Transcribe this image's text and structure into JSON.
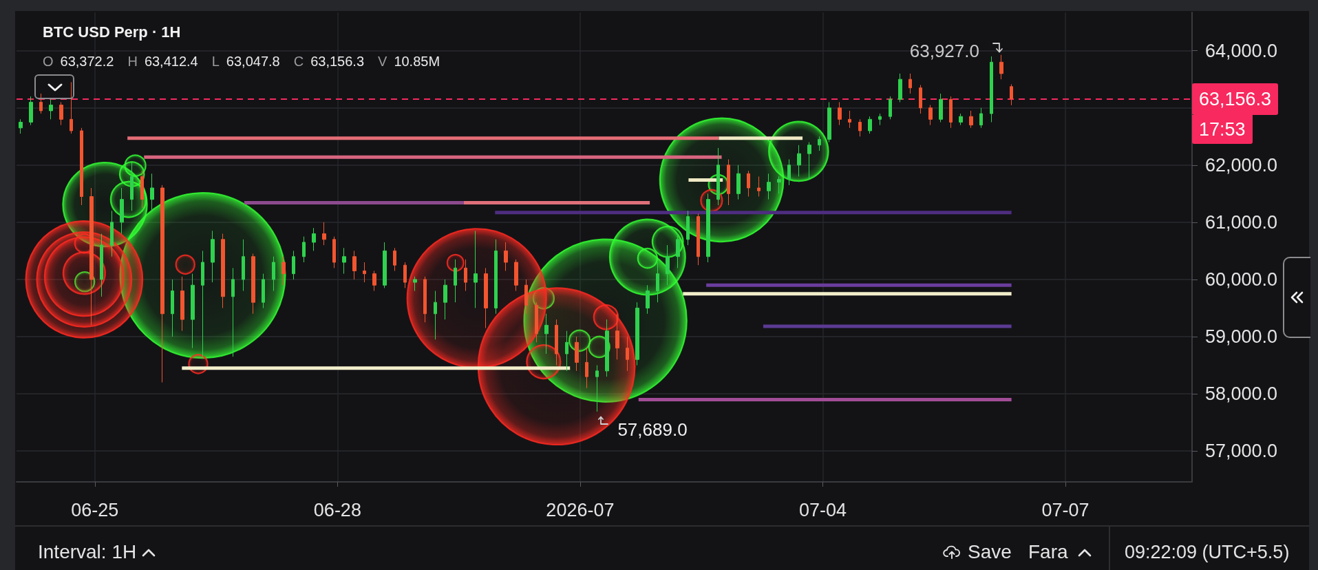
{
  "chart_data": {
    "type": "candlestick",
    "title": "BTC USD Perp · 1H",
    "subtitle": "O 63,372.2 H 63,412.4 L 63,047.8 C 63,156.3 V 10.85M",
    "xlim": [
      "2026-06-24T00:45",
      "2026-07-08T13:35"
    ],
    "xticks": [
      {
        "value": "2026-06-25",
        "label": "06-25"
      },
      {
        "value": "2026-06-28",
        "label": "06-28"
      },
      {
        "value": "2026-07-01",
        "label": "2026-07"
      },
      {
        "value": "2026-07-04",
        "label": "07-04"
      },
      {
        "value": "2026-07-07",
        "label": "07-07"
      }
    ],
    "ylim": [
      56460,
      64670
    ],
    "yticks": [
      {
        "value": 57000,
        "label": "57,000.0"
      },
      {
        "value": 58000,
        "label": "58,000.0"
      },
      {
        "value": 59000,
        "label": "59,000.0"
      },
      {
        "value": 60000,
        "label": "60,000.0"
      },
      {
        "value": 61000,
        "label": "61,000.0"
      },
      {
        "value": 62000,
        "label": "62,000.0"
      },
      {
        "value": 63000,
        "label": null
      },
      {
        "value": 64000,
        "label": "64,000.0"
      }
    ],
    "grid": true,
    "ref_lines": [
      {
        "axis": "y",
        "value": 63156.3,
        "label": "63,156.3",
        "color": "#f7295e",
        "line_style": "dashed"
      }
    ],
    "annotations": [
      {
        "text": "63,927.0",
        "x": "2026-07-06T05:00",
        "y": 63927
      },
      {
        "text": "57,689.0",
        "x": "2026-07-01T05:00",
        "y": 57689
      },
      "17:53",
      "Interval: 1H",
      "Save",
      "Fara",
      "09:22:09 (UTC+5.5)"
    ],
    "series": [
      {
        "type": "line",
        "color": "#e46d75",
        "x": [
          "2026-06-25T09:40",
          "2026-07-02T17:10"
        ],
        "values": [
          62470,
          62470
        ]
      },
      {
        "type": "line",
        "color": "#efe9c4",
        "x": [
          "2026-07-02T17:10",
          "2026-07-03T18:00"
        ],
        "values": [
          62470,
          62470
        ]
      },
      {
        "type": "line",
        "color": "#d8657f",
        "x": [
          "2026-06-25T14:35",
          "2026-07-02T18:00"
        ],
        "values": [
          62140,
          62140
        ]
      },
      {
        "type": "line",
        "color": "#8c4a8e",
        "x": [
          "2026-06-26T20:20",
          "2026-06-29T13:30"
        ],
        "values": [
          61340,
          61340
        ]
      },
      {
        "type": "line",
        "color": "#e0707a",
        "x": [
          "2026-06-29T13:30",
          "2026-07-01T20:40"
        ],
        "values": [
          61340,
          61340
        ]
      },
      {
        "type": "line",
        "color": "#f3eecb",
        "x": [
          "2026-06-26T01:50",
          "2026-06-30T21:00"
        ],
        "values": [
          58450,
          58450
        ]
      },
      {
        "type": "line",
        "color": "#f3eecb",
        "x": [
          "2026-07-02T06:30",
          "2026-07-06T08:00"
        ],
        "values": [
          59750,
          59750
        ]
      },
      {
        "type": "line",
        "color": "#6b3d9e",
        "x": [
          "2026-07-02T13:25",
          "2026-07-06T08:00"
        ],
        "values": [
          59900,
          59900
        ]
      },
      {
        "type": "line",
        "color": "#5b3a93",
        "x": [
          "2026-07-03T06:20",
          "2026-07-06T08:00"
        ],
        "values": [
          59180,
          59180
        ]
      },
      {
        "type": "line",
        "color": "#a24d97",
        "x": [
          "2026-07-01T17:20",
          "2026-07-06T08:00"
        ],
        "values": [
          57900,
          57900
        ]
      },
      {
        "type": "line",
        "color": "#4e2d80",
        "x": [
          "2026-06-29T22:45",
          "2026-07-06T08:00"
        ],
        "values": [
          61170,
          61170
        ]
      },
      {
        "type": "line",
        "color": "#efe9c4",
        "x": [
          "2026-07-02T08:10",
          "2026-07-02T18:20"
        ],
        "values": [
          61740,
          61740
        ]
      },
      {
        "type": "bubble",
        "color": "#33ff33",
        "x": [
          "2026-06-25T03:00",
          "2026-06-25T12:00",
          "2026-06-25T10:00",
          "2026-06-25T11:00",
          "2026-06-24T21:00",
          "2026-06-26T08:00",
          "2026-07-01T07:30",
          "2026-07-02T18:00",
          "2026-07-03T16:50",
          "2026-07-01T20:00",
          "2026-07-02T02:00",
          "2026-07-02T17:00",
          "2026-07-01T20:00",
          "2026-06-30T13:10",
          "2026-06-30T23:50",
          "2026-07-01T05:40"
        ],
        "values": [
          61310,
          61990,
          61400,
          61840,
          59960,
          60070,
          59280,
          61740,
          62240,
          60390,
          60660,
          61660,
          60370,
          59670,
          58930,
          58820
        ],
        "sizes": [
          0.26,
          0.016,
          0.047,
          0.022,
          0.014,
          1,
          0.97,
          0.56,
          0.13,
          0.21,
          0.035,
          0.014,
          0.014,
          0.016,
          0.016,
          0.016
        ]
      },
      {
        "type": "bubble",
        "color": "#ff2a22",
        "x": [
          "2026-06-24T20:50",
          "2026-06-24T20:50",
          "2026-06-24T20:50",
          "2026-06-24T20:50",
          "2026-06-29T17:20",
          "2026-06-30T17:00",
          "2026-06-26T02:50",
          "2026-06-26T06:40",
          "2026-06-29T11:00",
          "2026-07-01T07:40",
          "2026-07-02T15:00",
          "2026-06-30T13:10",
          "2026-06-24T20:50"
        ],
        "values": [
          60000,
          60000,
          60050,
          60110,
          59670,
          58480,
          60260,
          58520,
          60290,
          59340,
          61380,
          58560,
          60630
        ],
        "sizes": [
          0.5,
          0.33,
          0.23,
          0.065,
          0.71,
          0.9,
          0.013,
          0.013,
          0.01,
          0.022,
          0.017,
          0.042,
          0.013
        ]
      },
      {
        "x": [
          "2026-06-24T02:00",
          "2026-06-24T05:00",
          "2026-06-24T08:00",
          "2026-06-24T11:00",
          "2026-06-24T14:00",
          "2026-06-24T17:00",
          "2026-06-24T20:00",
          "2026-06-24T23:00",
          "2026-06-25T02:00",
          "2026-06-25T05:00",
          "2026-06-25T08:00",
          "2026-06-25T11:00",
          "2026-06-25T14:00",
          "2026-06-25T17:00",
          "2026-06-25T20:00",
          "2026-06-25T23:00",
          "2026-06-26T02:00",
          "2026-06-26T05:00",
          "2026-06-26T08:00",
          "2026-06-26T11:00",
          "2026-06-26T14:00",
          "2026-06-26T17:00",
          "2026-06-26T20:00",
          "2026-06-26T23:00",
          "2026-06-27T02:00",
          "2026-06-27T05:00",
          "2026-06-27T08:00",
          "2026-06-27T11:00",
          "2026-06-27T14:00",
          "2026-06-27T17:00",
          "2026-06-27T20:00",
          "2026-06-27T23:00",
          "2026-06-28T02:00",
          "2026-06-28T05:00",
          "2026-06-28T08:00",
          "2026-06-28T11:00",
          "2026-06-28T14:00",
          "2026-06-28T17:00",
          "2026-06-28T20:00",
          "2026-06-28T23:00",
          "2026-06-29T02:00",
          "2026-06-29T05:00",
          "2026-06-29T08:00",
          "2026-06-29T11:00",
          "2026-06-29T14:00",
          "2026-06-29T17:00",
          "2026-06-29T20:00",
          "2026-06-29T23:00",
          "2026-06-30T02:00",
          "2026-06-30T05:00",
          "2026-06-30T08:00",
          "2026-06-30T11:00",
          "2026-06-30T14:00",
          "2026-06-30T17:00",
          "2026-06-30T20:00",
          "2026-06-30T23:00",
          "2026-07-01T02:00",
          "2026-07-01T05:00",
          "2026-07-01T08:00",
          "2026-07-01T11:00",
          "2026-07-01T14:00",
          "2026-07-01T17:00",
          "2026-07-01T20:00",
          "2026-07-01T23:00",
          "2026-07-02T02:00",
          "2026-07-02T05:00",
          "2026-07-02T08:00",
          "2026-07-02T11:00",
          "2026-07-02T14:00",
          "2026-07-02T17:00",
          "2026-07-02T20:00",
          "2026-07-02T23:00",
          "2026-07-03T02:00",
          "2026-07-03T05:00",
          "2026-07-03T08:00",
          "2026-07-03T11:00",
          "2026-07-03T14:00",
          "2026-07-03T17:00",
          "2026-07-03T20:00",
          "2026-07-03T23:00",
          "2026-07-04T02:00",
          "2026-07-04T05:00",
          "2026-07-04T08:00",
          "2026-07-04T11:00",
          "2026-07-04T14:00",
          "2026-07-04T17:00",
          "2026-07-04T20:00",
          "2026-07-04T23:00",
          "2026-07-05T02:00",
          "2026-07-05T05:00",
          "2026-07-05T08:00",
          "2026-07-05T11:00",
          "2026-07-05T14:00",
          "2026-07-05T17:00",
          "2026-07-05T20:00",
          "2026-07-05T23:00",
          "2026-07-06T02:00",
          "2026-07-06T05:00",
          "2026-07-06T08:00"
        ],
        "ohlc": [
          [
            62650,
            62800,
            62550,
            62750
          ],
          [
            62750,
            63200,
            62700,
            63100
          ],
          [
            63100,
            63250,
            62900,
            62950
          ],
          [
            62950,
            63150,
            62800,
            63050
          ],
          [
            63050,
            63100,
            62700,
            62800
          ],
          [
            62800,
            63450,
            62550,
            62600
          ],
          [
            62600,
            62650,
            61300,
            61450
          ],
          [
            61450,
            61600,
            59200,
            60000
          ],
          [
            60000,
            60800,
            59700,
            60600
          ],
          [
            60600,
            61200,
            60400,
            61000
          ],
          [
            61000,
            61600,
            60800,
            61400
          ],
          [
            61400,
            62050,
            61200,
            61800
          ],
          [
            61800,
            61900,
            61250,
            61400
          ],
          [
            61400,
            61850,
            61200,
            61600
          ],
          [
            61600,
            61650,
            58200,
            59400
          ],
          [
            59400,
            60000,
            59000,
            59800
          ],
          [
            59800,
            60050,
            59100,
            59300
          ],
          [
            59300,
            60100,
            58800,
            59900
          ],
          [
            59900,
            60500,
            58650,
            60300
          ],
          [
            60300,
            60850,
            59950,
            60700
          ],
          [
            60700,
            60800,
            59500,
            59700
          ],
          [
            59700,
            60200,
            58650,
            60000
          ],
          [
            60000,
            60700,
            59800,
            60400
          ],
          [
            60400,
            60450,
            59400,
            59600
          ],
          [
            59600,
            60100,
            59500,
            60000
          ],
          [
            60000,
            60400,
            59800,
            60300
          ],
          [
            60300,
            60400,
            59900,
            60100
          ],
          [
            60100,
            60500,
            60000,
            60400
          ],
          [
            60400,
            60750,
            60300,
            60650
          ],
          [
            60650,
            60900,
            60500,
            60800
          ],
          [
            60800,
            61000,
            60600,
            60700
          ],
          [
            60700,
            60750,
            60200,
            60300
          ],
          [
            60300,
            60550,
            60100,
            60400
          ],
          [
            60400,
            60500,
            60000,
            60150
          ],
          [
            60150,
            60300,
            59950,
            60100
          ],
          [
            60100,
            60150,
            59800,
            59900
          ],
          [
            59900,
            60650,
            59850,
            60500
          ],
          [
            60500,
            60550,
            60150,
            60250
          ],
          [
            60250,
            60300,
            59850,
            59950
          ],
          [
            59950,
            60050,
            59800,
            60000
          ],
          [
            60000,
            60050,
            59250,
            59400
          ],
          [
            59400,
            59800,
            58950,
            59600
          ],
          [
            59600,
            60000,
            59300,
            59900
          ],
          [
            59900,
            60350,
            59600,
            60200
          ],
          [
            60200,
            60350,
            59800,
            59950
          ],
          [
            59950,
            60850,
            59500,
            60100
          ],
          [
            60100,
            60200,
            59150,
            59500
          ],
          [
            59500,
            60700,
            59400,
            60500
          ],
          [
            60500,
            60650,
            60150,
            60300
          ],
          [
            60300,
            60350,
            59800,
            59900
          ],
          [
            59900,
            60000,
            59400,
            59550
          ],
          [
            59550,
            59600,
            58900,
            59050
          ],
          [
            59050,
            59400,
            58700,
            59200
          ],
          [
            59200,
            59300,
            58500,
            58700
          ],
          [
            58700,
            59100,
            58400,
            58900
          ],
          [
            58900,
            59000,
            58400,
            58550
          ],
          [
            58550,
            58800,
            58100,
            58300
          ],
          [
            58300,
            58500,
            57689,
            58400
          ],
          [
            58400,
            59300,
            58300,
            59100
          ],
          [
            59100,
            59400,
            58600,
            58800
          ],
          [
            58800,
            59000,
            58400,
            58600
          ],
          [
            58600,
            59600,
            58500,
            59500
          ],
          [
            59500,
            59900,
            59400,
            59800
          ],
          [
            59800,
            60300,
            59600,
            60100
          ],
          [
            60100,
            60600,
            59900,
            60400
          ],
          [
            60400,
            60800,
            60200,
            60700
          ],
          [
            60700,
            61200,
            60600,
            61100
          ],
          [
            61100,
            61150,
            60250,
            60400
          ],
          [
            60400,
            61500,
            60300,
            61400
          ],
          [
            61400,
            62300,
            61300,
            62000
          ],
          [
            62000,
            62100,
            61300,
            61500
          ],
          [
            61500,
            62000,
            61400,
            61850
          ],
          [
            61850,
            61900,
            61450,
            61600
          ],
          [
            61600,
            61800,
            61450,
            61550
          ],
          [
            61550,
            61850,
            61400,
            61700
          ],
          [
            61700,
            61800,
            61500,
            61750
          ],
          [
            61750,
            62100,
            61650,
            62000
          ],
          [
            62000,
            62350,
            61800,
            62200
          ],
          [
            62200,
            62400,
            61750,
            62350
          ],
          [
            62350,
            62500,
            62250,
            62450
          ],
          [
            62450,
            63100,
            62400,
            63000
          ],
          [
            63000,
            63100,
            62700,
            62800
          ],
          [
            62800,
            62950,
            62650,
            62750
          ],
          [
            62750,
            62800,
            62500,
            62600
          ],
          [
            62600,
            62850,
            62550,
            62800
          ],
          [
            62800,
            62900,
            62700,
            62850
          ],
          [
            62850,
            63200,
            62800,
            63150
          ],
          [
            63150,
            63600,
            63100,
            63500
          ],
          [
            63500,
            63600,
            63250,
            63350
          ],
          [
            63350,
            63400,
            62900,
            63000
          ],
          [
            63000,
            63050,
            62700,
            62800
          ],
          [
            62800,
            63250,
            62750,
            63150
          ],
          [
            63150,
            63200,
            62650,
            62750
          ],
          [
            62750,
            62900,
            62700,
            62850
          ],
          [
            62850,
            62950,
            62650,
            62700
          ],
          [
            62700,
            63000,
            62650,
            62900
          ],
          [
            62900,
            63900,
            62750,
            63800
          ],
          [
            63800,
            63927,
            63500,
            63600
          ],
          [
            63372.2,
            63412.4,
            63047.8,
            63156.3
          ]
        ],
        "colors": [
          "#2fd24e",
          "#2fd24e",
          "#f2552f",
          "#2fd24e",
          "#f2552f",
          "#f2552f",
          "#f2552f",
          "#f2552f",
          "#2fd24e",
          "#2fd24e",
          "#2fd24e",
          "#2fd24e",
          "#f2552f",
          "#2fd24e",
          "#f2552f",
          "#2fd24e",
          "#f2552f",
          "#2fd24e",
          "#2fd24e",
          "#2fd24e",
          "#f2552f",
          "#2fd24e",
          "#2fd24e",
          "#f2552f",
          "#2fd24e",
          "#2fd24e",
          "#f2552f",
          "#2fd24e",
          "#2fd24e",
          "#2fd24e",
          "#f2552f",
          "#f2552f",
          "#2fd24e",
          "#f2552f",
          "#f2552f",
          "#f2552f",
          "#2fd24e",
          "#f2552f",
          "#f2552f",
          "#2fd24e",
          "#f2552f",
          "#2fd24e",
          "#2fd24e",
          "#2fd24e",
          "#f2552f",
          "#2fd24e",
          "#f2552f",
          "#2fd24e",
          "#f2552f",
          "#f2552f",
          "#f2552f",
          "#f2552f",
          "#2fd24e",
          "#f2552f",
          "#2fd24e",
          "#f2552f",
          "#f2552f",
          "#2fd24e",
          "#2fd24e",
          "#f2552f",
          "#f2552f",
          "#2fd24e",
          "#2fd24e",
          "#2fd24e",
          "#2fd24e",
          "#2fd24e",
          "#2fd24e",
          "#f2552f",
          "#2fd24e",
          "#2fd24e",
          "#f2552f",
          "#2fd24e",
          "#f2552f",
          "#f2552f",
          "#2fd24e",
          "#2fd24e",
          "#2fd24e",
          "#2fd24e",
          "#2fd24e",
          "#2fd24e",
          "#2fd24e",
          "#f2552f",
          "#f2552f",
          "#f2552f",
          "#2fd24e",
          "#2fd24e",
          "#2fd24e",
          "#2fd24e",
          "#f2552f",
          "#f2552f",
          "#f2552f",
          "#2fd24e",
          "#f2552f",
          "#2fd24e",
          "#f2552f",
          "#2fd24e",
          "#2fd24e",
          "#f2552f",
          "#f2552f"
        ]
      }
    ]
  }
}
